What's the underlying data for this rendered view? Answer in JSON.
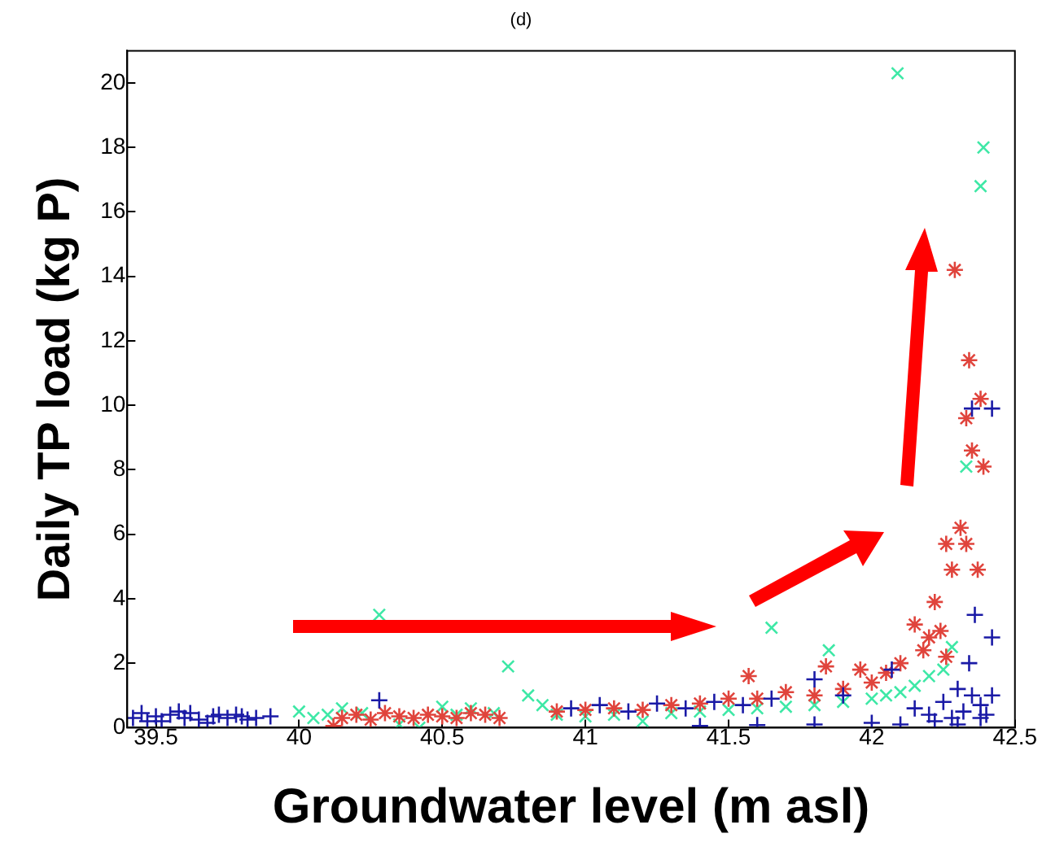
{
  "chart_data": {
    "type": "scatter",
    "title": "(d)",
    "xlabel": "Groundwater level (m asl)",
    "ylabel": "Daily TP load (kg P)",
    "xlim": [
      39.4,
      42.5
    ],
    "ylim": [
      0,
      21
    ],
    "xticks": [
      39.5,
      40,
      40.5,
      41,
      41.5,
      42,
      42.5
    ],
    "yticks": [
      0,
      2,
      4,
      6,
      8,
      10,
      12,
      14,
      16,
      18,
      20
    ],
    "grid": false,
    "legend": false,
    "series": [
      {
        "color": "#1a1aa6",
        "marker": "plus",
        "x": [
          39.42,
          39.45,
          39.5,
          39.52,
          39.55,
          39.6,
          39.62,
          39.65,
          39.7,
          39.72,
          39.75,
          39.8,
          39.82,
          39.85,
          39.9,
          39.47,
          39.58,
          39.68,
          39.78,
          40.28,
          40.95,
          41.05,
          41.15,
          41.25,
          41.35,
          41.45,
          41.55,
          41.65,
          41.8,
          41.9,
          42.07,
          42.15,
          42.2,
          42.25,
          42.28,
          42.3,
          42.32,
          42.34,
          42.35,
          42.36,
          42.38,
          42.4,
          42.42,
          42.42,
          42.35,
          42.42,
          41.4,
          41.6,
          41.8,
          42.0,
          42.1,
          42.22,
          42.3,
          42.38
        ],
        "values": [
          0.3,
          0.45,
          0.35,
          0.2,
          0.4,
          0.3,
          0.45,
          0.25,
          0.35,
          0.4,
          0.3,
          0.35,
          0.25,
          0.3,
          0.35,
          0.2,
          0.5,
          0.15,
          0.4,
          0.85,
          0.6,
          0.7,
          0.5,
          0.75,
          0.6,
          0.8,
          0.7,
          0.9,
          1.5,
          1.0,
          1.8,
          0.6,
          0.4,
          0.8,
          0.3,
          1.2,
          0.5,
          2.0,
          1.0,
          3.5,
          0.7,
          0.4,
          2.8,
          1.0,
          9.9,
          9.9,
          0.05,
          0.08,
          0.1,
          0.15,
          0.1,
          0.2,
          0.1,
          0.3
        ]
      },
      {
        "color": "#e0443c",
        "marker": "cross",
        "x": [
          40.12,
          40.15,
          40.2,
          40.25,
          40.3,
          40.35,
          40.4,
          40.45,
          40.5,
          40.55,
          40.6,
          40.65,
          40.7,
          40.9,
          41.0,
          41.1,
          41.2,
          41.3,
          41.4,
          41.5,
          41.57,
          41.6,
          41.7,
          41.8,
          41.84,
          41.9,
          41.96,
          42.0,
          42.05,
          42.1,
          42.15,
          42.18,
          42.2,
          42.22,
          42.24,
          42.26,
          42.28,
          42.26,
          42.29,
          42.31,
          42.33,
          42.33,
          42.34,
          42.35,
          42.37,
          42.38,
          42.39
        ],
        "values": [
          0.05,
          0.3,
          0.4,
          0.25,
          0.45,
          0.35,
          0.3,
          0.4,
          0.35,
          0.3,
          0.45,
          0.4,
          0.3,
          0.5,
          0.55,
          0.6,
          0.55,
          0.7,
          0.75,
          0.9,
          1.6,
          0.9,
          1.1,
          1.0,
          1.9,
          1.2,
          1.8,
          1.4,
          1.7,
          2.0,
          3.2,
          2.4,
          2.8,
          3.9,
          3.0,
          5.7,
          4.9,
          2.2,
          14.2,
          6.2,
          5.7,
          9.6,
          11.4,
          8.6,
          4.9,
          10.2,
          8.1
        ]
      },
      {
        "color": "#3ee8a6",
        "marker": "x",
        "x": [
          40.0,
          40.05,
          40.1,
          40.15,
          40.22,
          40.28,
          40.35,
          40.42,
          40.5,
          40.55,
          40.6,
          40.68,
          40.73,
          40.8,
          40.85,
          40.9,
          41.0,
          41.1,
          41.2,
          41.3,
          41.4,
          41.5,
          41.6,
          41.65,
          41.7,
          41.8,
          41.85,
          41.9,
          42.0,
          42.05,
          42.09,
          42.1,
          42.15,
          42.2,
          42.25,
          42.28,
          42.33,
          42.38,
          42.39
        ],
        "values": [
          0.5,
          0.3,
          0.4,
          0.6,
          0.45,
          3.5,
          0.1,
          0.0,
          0.65,
          0.4,
          0.6,
          0.45,
          1.9,
          1.0,
          0.7,
          0.4,
          0.35,
          0.4,
          0.2,
          0.45,
          0.5,
          0.55,
          0.6,
          3.1,
          0.65,
          0.7,
          2.4,
          0.8,
          0.9,
          1.0,
          20.3,
          1.1,
          1.3,
          1.6,
          1.8,
          2.5,
          8.1,
          16.8,
          18.0
        ]
      }
    ]
  }
}
